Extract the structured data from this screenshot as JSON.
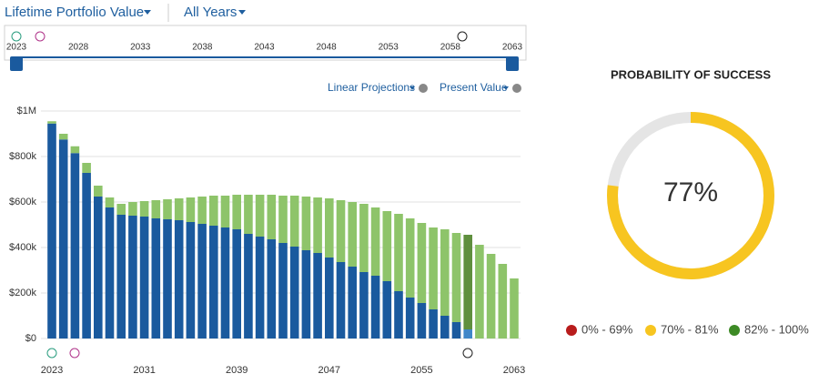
{
  "header": {
    "menus": [
      "Lifetime Portfolio Value",
      "All Years"
    ]
  },
  "timeline": {
    "labels": [
      "2023",
      "2028",
      "2033",
      "2038",
      "2043",
      "2048",
      "2053",
      "2058",
      "2063"
    ]
  },
  "options": [
    "Linear Projections",
    "Present Value"
  ],
  "chart_data": [
    {
      "type": "bar",
      "stacked": true,
      "categories": [
        "2023",
        null,
        null,
        null,
        null,
        null,
        null,
        null,
        "2031",
        null,
        null,
        null,
        null,
        null,
        null,
        null,
        "2039",
        null,
        null,
        null,
        null,
        null,
        null,
        null,
        "2047",
        null,
        null,
        null,
        null,
        null,
        null,
        null,
        "2055",
        null,
        null,
        null,
        null,
        null,
        null,
        null,
        "2063"
      ],
      "series": [
        {
          "color": "#1a5a9e",
          "values": [
            945000,
            875000,
            815000,
            728000,
            624000,
            576000,
            544000,
            540000,
            536000,
            528000,
            524000,
            520000,
            512000,
            504000,
            496000,
            488000,
            480000,
            460000,
            448000,
            436000,
            420000,
            404000,
            388000,
            376000,
            356000,
            336000,
            316000,
            292000,
            276000,
            252000,
            208000,
            180000,
            156000,
            128000,
            100000,
            72000,
            40000,
            0,
            0,
            0,
            0
          ]
        },
        {
          "color": "#8ec46a",
          "values": [
            10000,
            25000,
            30000,
            44000,
            48000,
            44000,
            48000,
            60000,
            68000,
            80000,
            88000,
            96000,
            108000,
            120000,
            132000,
            140000,
            152000,
            172000,
            184000,
            196000,
            208000,
            224000,
            236000,
            244000,
            260000,
            272000,
            284000,
            300000,
            300000,
            308000,
            340000,
            348000,
            352000,
            360000,
            380000,
            392000,
            416000,
            412000,
            372000,
            328000,
            264000
          ]
        }
      ],
      "highlight": 36,
      "highlight_colors": [
        "#3f86c8",
        "#5f8f3e"
      ],
      "ylim": [
        0,
        1000000
      ],
      "yticks": [
        {
          "value": 0,
          "label": "$0"
        },
        {
          "value": 200000,
          "label": "$200k"
        },
        {
          "value": 400000,
          "label": "$400k"
        },
        {
          "value": 600000,
          "label": "$600k"
        },
        {
          "value": 800000,
          "label": "$800k"
        },
        {
          "value": 1000000,
          "label": "$1M"
        }
      ],
      "grid": true
    },
    {
      "type": "gauge",
      "title": "PROBABILITY OF SUCCESS",
      "value": 77,
      "value_label": "77%",
      "max": 100,
      "color": "#f7c520",
      "track_color": "#e5e5e5",
      "legend": [
        {
          "label": "0% - 69%",
          "color": "#b81c1c"
        },
        {
          "label": "70% - 81%",
          "color": "#f7c520"
        },
        {
          "label": "82% - 100%",
          "color": "#3d8a25"
        }
      ]
    }
  ]
}
